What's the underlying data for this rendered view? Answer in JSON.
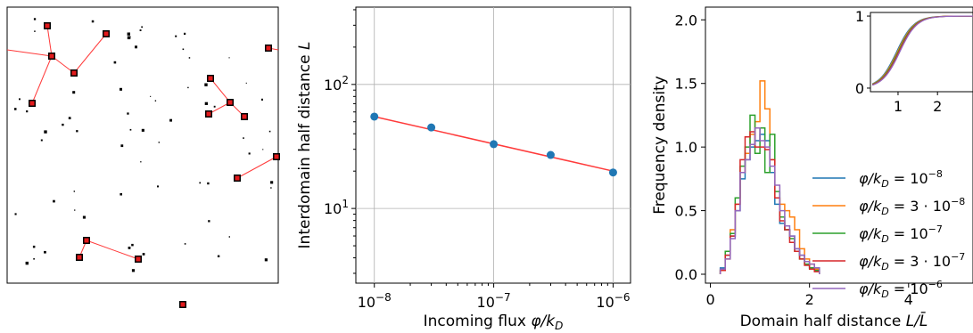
{
  "panel_a": {
    "description_type": "domain snapshot",
    "domain_colors": {
      "domain": "#000000",
      "marker": "#e31a1c",
      "link": "#ff3b3b"
    }
  },
  "panel_b": {
    "xlabel_prefix": "Incoming flux ",
    "xlabel_math": "φ/k",
    "xlabel_sub": "D",
    "ylabel_prefix": "Interdomain half distance ",
    "ylabel_math": "L",
    "xticks": [
      {
        "base": "10",
        "exp": "−8"
      },
      {
        "base": "10",
        "exp": "−7"
      },
      {
        "base": "10",
        "exp": "−6"
      }
    ],
    "yticks": [
      {
        "base": "10",
        "exp": "1"
      },
      {
        "base": "10",
        "exp": "2"
      }
    ]
  },
  "panel_c": {
    "xlabel_prefix": "Domain half distance ",
    "xlabel_math": "L/L̄",
    "ylabel": "Frequency density",
    "xticks": [
      "0",
      "2",
      "4"
    ],
    "yticks": [
      "0.0",
      "0.5",
      "1.0",
      "1.5",
      "2.0"
    ],
    "inset_xticks": [
      "1",
      "2"
    ],
    "inset_yticks": [
      "0",
      "1"
    ],
    "legend": [
      {
        "label_math": "φ/k",
        "sub": "D",
        "rest": " = 10",
        "exp": "−8",
        "color": "#1f77b4"
      },
      {
        "label_math": "φ/k",
        "sub": "D",
        "rest": " = 3 · 10",
        "exp": "−8",
        "color": "#ff7f0e"
      },
      {
        "label_math": "φ/k",
        "sub": "D",
        "rest": " = 10",
        "exp": "−7",
        "color": "#2ca02c"
      },
      {
        "label_math": "φ/k",
        "sub": "D",
        "rest": " = 3 · 10",
        "exp": "−7",
        "color": "#d62728"
      },
      {
        "label_math": "φ/k",
        "sub": "D",
        "rest": " = 10",
        "exp": "−6",
        "color": "#9467bd"
      }
    ]
  },
  "chart_data": [
    {
      "type": "scatter",
      "x": [
        1e-08,
        3e-08,
        1e-07,
        3e-07,
        1e-06
      ],
      "y": [
        55,
        45,
        33,
        27,
        19.5
      ],
      "xscale": "log",
      "yscale": "log",
      "xlim": [
        7e-09,
        1.4e-06
      ],
      "ylim": [
        2.5,
        420
      ],
      "fit_line": {
        "color": "#ff3b3b",
        "y_at_xmin": 55,
        "y_at_xmax": 20
      },
      "marker_color": "#1f77b4",
      "grid": true
    },
    {
      "type": "line",
      "step": true,
      "xlim": [
        -0.1,
        5.3
      ],
      "ylim": [
        -0.07,
        2.1
      ],
      "bin_width": 0.1,
      "bin_start": 0.2,
      "series": [
        {
          "color": "#1f77b4",
          "values": [
            0.05,
            0.15,
            0.3,
            0.5,
            0.75,
            0.9,
            1.0,
            1.05,
            1.1,
            1.05,
            0.8,
            0.55,
            0.4,
            0.35,
            0.3,
            0.2,
            0.15,
            0.1,
            0.05,
            0.05
          ]
        },
        {
          "color": "#ff7f0e",
          "values": [
            0.03,
            0.12,
            0.35,
            0.55,
            0.8,
            0.95,
            1.1,
            1.2,
            1.52,
            1.3,
            0.9,
            0.6,
            0.55,
            0.5,
            0.45,
            0.35,
            0.2,
            0.12,
            0.08,
            0.04
          ]
        },
        {
          "color": "#2ca02c",
          "values": [
            0.04,
            0.18,
            0.32,
            0.6,
            0.85,
            1.0,
            1.25,
            0.95,
            1.15,
            0.8,
            1.1,
            0.65,
            0.45,
            0.35,
            0.28,
            0.18,
            0.12,
            0.08,
            0.05,
            0.03
          ]
        },
        {
          "color": "#d62728",
          "values": [
            0.03,
            0.15,
            0.3,
            0.55,
            0.9,
            1.08,
            1.12,
            1.0,
            1.0,
            0.98,
            0.9,
            0.6,
            0.42,
            0.35,
            0.25,
            0.18,
            0.12,
            0.07,
            0.04,
            0.02
          ]
        },
        {
          "color": "#9467bd",
          "values": [
            0.04,
            0.12,
            0.28,
            0.5,
            0.8,
            0.9,
            1.02,
            1.15,
            1.05,
            1.0,
            0.85,
            0.7,
            0.5,
            0.38,
            0.3,
            0.2,
            0.15,
            0.1,
            0.08,
            0.05
          ]
        }
      ],
      "inset": {
        "type": "line",
        "xlim": [
          0.3,
          2.9
        ],
        "ylim": [
          -0.05,
          1.05
        ],
        "description": "cumulative distributions"
      }
    }
  ]
}
